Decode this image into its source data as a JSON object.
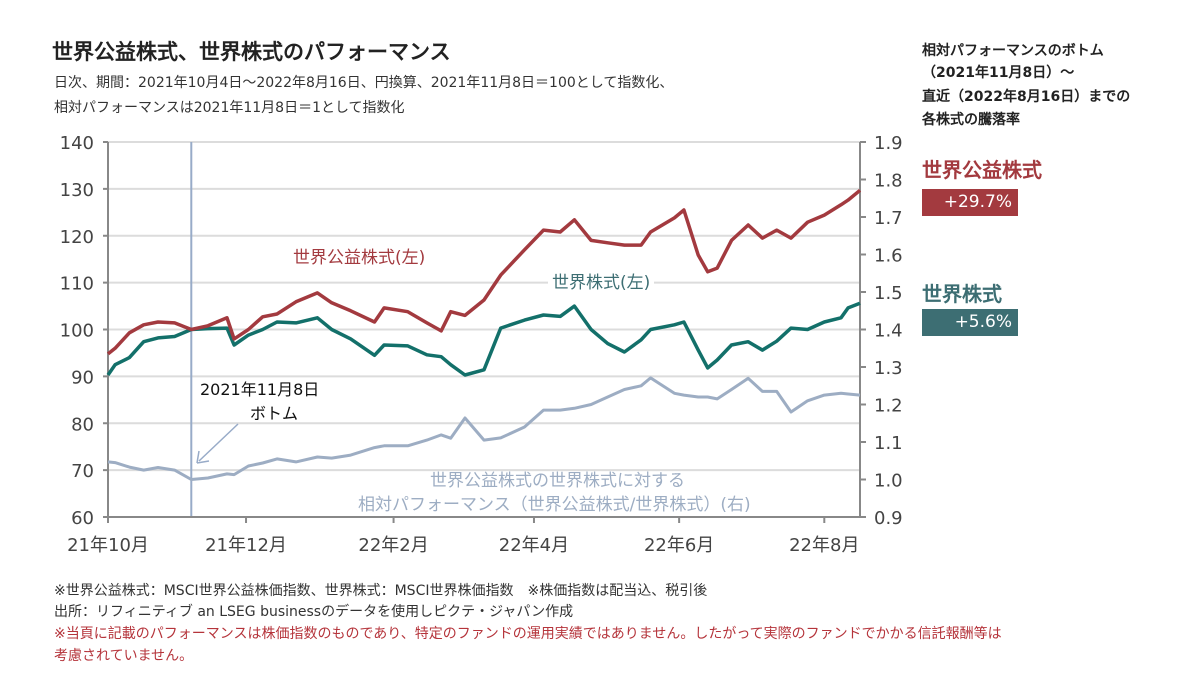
{
  "header": {
    "title": "世界公益株式、世界株式のパフォーマンス",
    "subtitle_line1": "日次、期間：2021年10月4日～2022年8月16日、円換算、2021年11月8日＝100として指数化、",
    "subtitle_line2": "相対パフォーマンスは2021年11月8日＝1として指数化"
  },
  "right_panel": {
    "heading_lines": [
      "相対パフォーマンスのボトム",
      "（2021年11月8日）～",
      "直近（2022年8月16日）までの",
      "各株式の騰落率"
    ],
    "items": [
      {
        "name": "世界公益株式",
        "value": "+29.7%",
        "color": "#a33a3f"
      },
      {
        "name": "世界株式",
        "value": "+5.6%",
        "color": "#3d6e73"
      }
    ]
  },
  "annotation": {
    "date": "2021年11月8日",
    "label": "ボトム"
  },
  "footnotes": {
    "line1": "※世界公益株式：MSCI世界公益株価指数、世界株式：MSCI世界株価指数　※株価指数は配当込、税引後",
    "line2": "出所：リフィニティブ an LSEG businessのデータを使用しピクテ・ジャパン作成",
    "line3": "※当頁に記載のパフォーマンスは株価指数のものであり、特定のファンドの運用実績ではありません。したがって実際のファンドでかかる信託報酬等は",
    "line4": "考慮されていません。"
  },
  "chart_data": {
    "type": "line",
    "x_range": [
      "2021-10-04",
      "2022-08-16"
    ],
    "x_tick_labels": [
      "21年10月",
      "21年12月",
      "22年2月",
      "22年4月",
      "22年6月",
      "22年8月"
    ],
    "x_tick_dates": [
      "2021-10-04",
      "2021-12-01",
      "2022-02-01",
      "2022-04-01",
      "2022-06-01",
      "2022-08-01"
    ],
    "y_left": {
      "range": [
        60,
        140
      ],
      "ticks": [
        60,
        70,
        80,
        90,
        100,
        110,
        120,
        130,
        140
      ]
    },
    "y_right": {
      "range": [
        0.9,
        1.9
      ],
      "ticks": [
        "0.9",
        "1.0",
        "1.1",
        "1.2",
        "1.3",
        "1.4",
        "1.5",
        "1.6",
        "1.7",
        "1.8",
        "1.9"
      ]
    },
    "grid": true,
    "marker_date": "2021-11-08",
    "x": [
      "2021-10-04",
      "2021-10-07",
      "2021-10-13",
      "2021-10-19",
      "2021-10-25",
      "2021-11-01",
      "2021-11-08",
      "2021-11-15",
      "2021-11-23",
      "2021-11-26",
      "2021-12-02",
      "2021-12-08",
      "2021-12-14",
      "2021-12-22",
      "2021-12-31",
      "2022-01-06",
      "2022-01-14",
      "2022-01-24",
      "2022-01-28",
      "2022-02-07",
      "2022-02-15",
      "2022-02-21",
      "2022-02-25",
      "2022-03-03",
      "2022-03-11",
      "2022-03-18",
      "2022-03-28",
      "2022-04-05",
      "2022-04-12",
      "2022-04-18",
      "2022-04-25",
      "2022-05-02",
      "2022-05-09",
      "2022-05-16",
      "2022-05-20",
      "2022-05-30",
      "2022-06-03",
      "2022-06-09",
      "2022-06-13",
      "2022-06-17",
      "2022-06-23",
      "2022-06-30",
      "2022-07-06",
      "2022-07-12",
      "2022-07-18",
      "2022-07-25",
      "2022-08-01",
      "2022-08-08",
      "2022-08-11",
      "2022-08-16"
    ],
    "series": [
      {
        "name": "世界公益株式(左)",
        "axis": "left",
        "color": "#a33a3f",
        "values": [
          94.8,
          96,
          99.3,
          101,
          101.6,
          101.4,
          100,
          100.8,
          102.5,
          98,
          100,
          102.7,
          103.3,
          105.9,
          107.8,
          105.7,
          104,
          101.6,
          104.6,
          103.8,
          101.4,
          99.7,
          103.8,
          103,
          106.3,
          111.6,
          117,
          121.2,
          120.8,
          123.4,
          119,
          118.5,
          118,
          118,
          120.8,
          123.8,
          125.5,
          115.9,
          112.3,
          113.1,
          119,
          122.3,
          119.5,
          121.2,
          119.5,
          122.9,
          124.4,
          126.6,
          127.6,
          129.7
        ]
      },
      {
        "name": "世界株式(左)",
        "axis": "left",
        "color": "#13706a",
        "values": [
          90.3,
          92.5,
          94,
          97.4,
          98.2,
          98.5,
          100,
          100.2,
          100.3,
          96.7,
          98.8,
          100,
          101.6,
          101.4,
          102.5,
          100,
          98,
          94.5,
          96.7,
          96.5,
          94.6,
          94.2,
          92.5,
          90.3,
          91.4,
          100.3,
          102,
          103.1,
          102.8,
          105,
          100,
          97,
          95.2,
          97.8,
          100,
          101,
          101.6,
          95.6,
          91.8,
          93.5,
          96.7,
          97.4,
          95.6,
          97.5,
          100.3,
          100,
          101.6,
          102.5,
          104.6,
          105.6
        ]
      },
      {
        "name": "世界公益株式の世界株式に対する相対パフォーマンス（世界公益株式/世界株式）(右)",
        "label_lines": [
          "世界公益株式の世界株式に対する",
          "相対パフォーマンス（世界公益株式/世界株式）(右)"
        ],
        "axis": "right",
        "color": "#9dadc3",
        "values": [
          1.047,
          1.045,
          1.033,
          1.025,
          1.032,
          1.025,
          1.0,
          1.004,
          1.015,
          1.013,
          1.036,
          1.044,
          1.055,
          1.047,
          1.06,
          1.057,
          1.065,
          1.085,
          1.09,
          1.09,
          1.105,
          1.119,
          1.11,
          1.164,
          1.105,
          1.111,
          1.14,
          1.185,
          1.185,
          1.19,
          1.2,
          1.22,
          1.24,
          1.25,
          1.271,
          1.23,
          1.225,
          1.22,
          1.22,
          1.215,
          1.24,
          1.27,
          1.235,
          1.235,
          1.18,
          1.21,
          1.225,
          1.23,
          1.228,
          1.225
        ]
      }
    ]
  }
}
